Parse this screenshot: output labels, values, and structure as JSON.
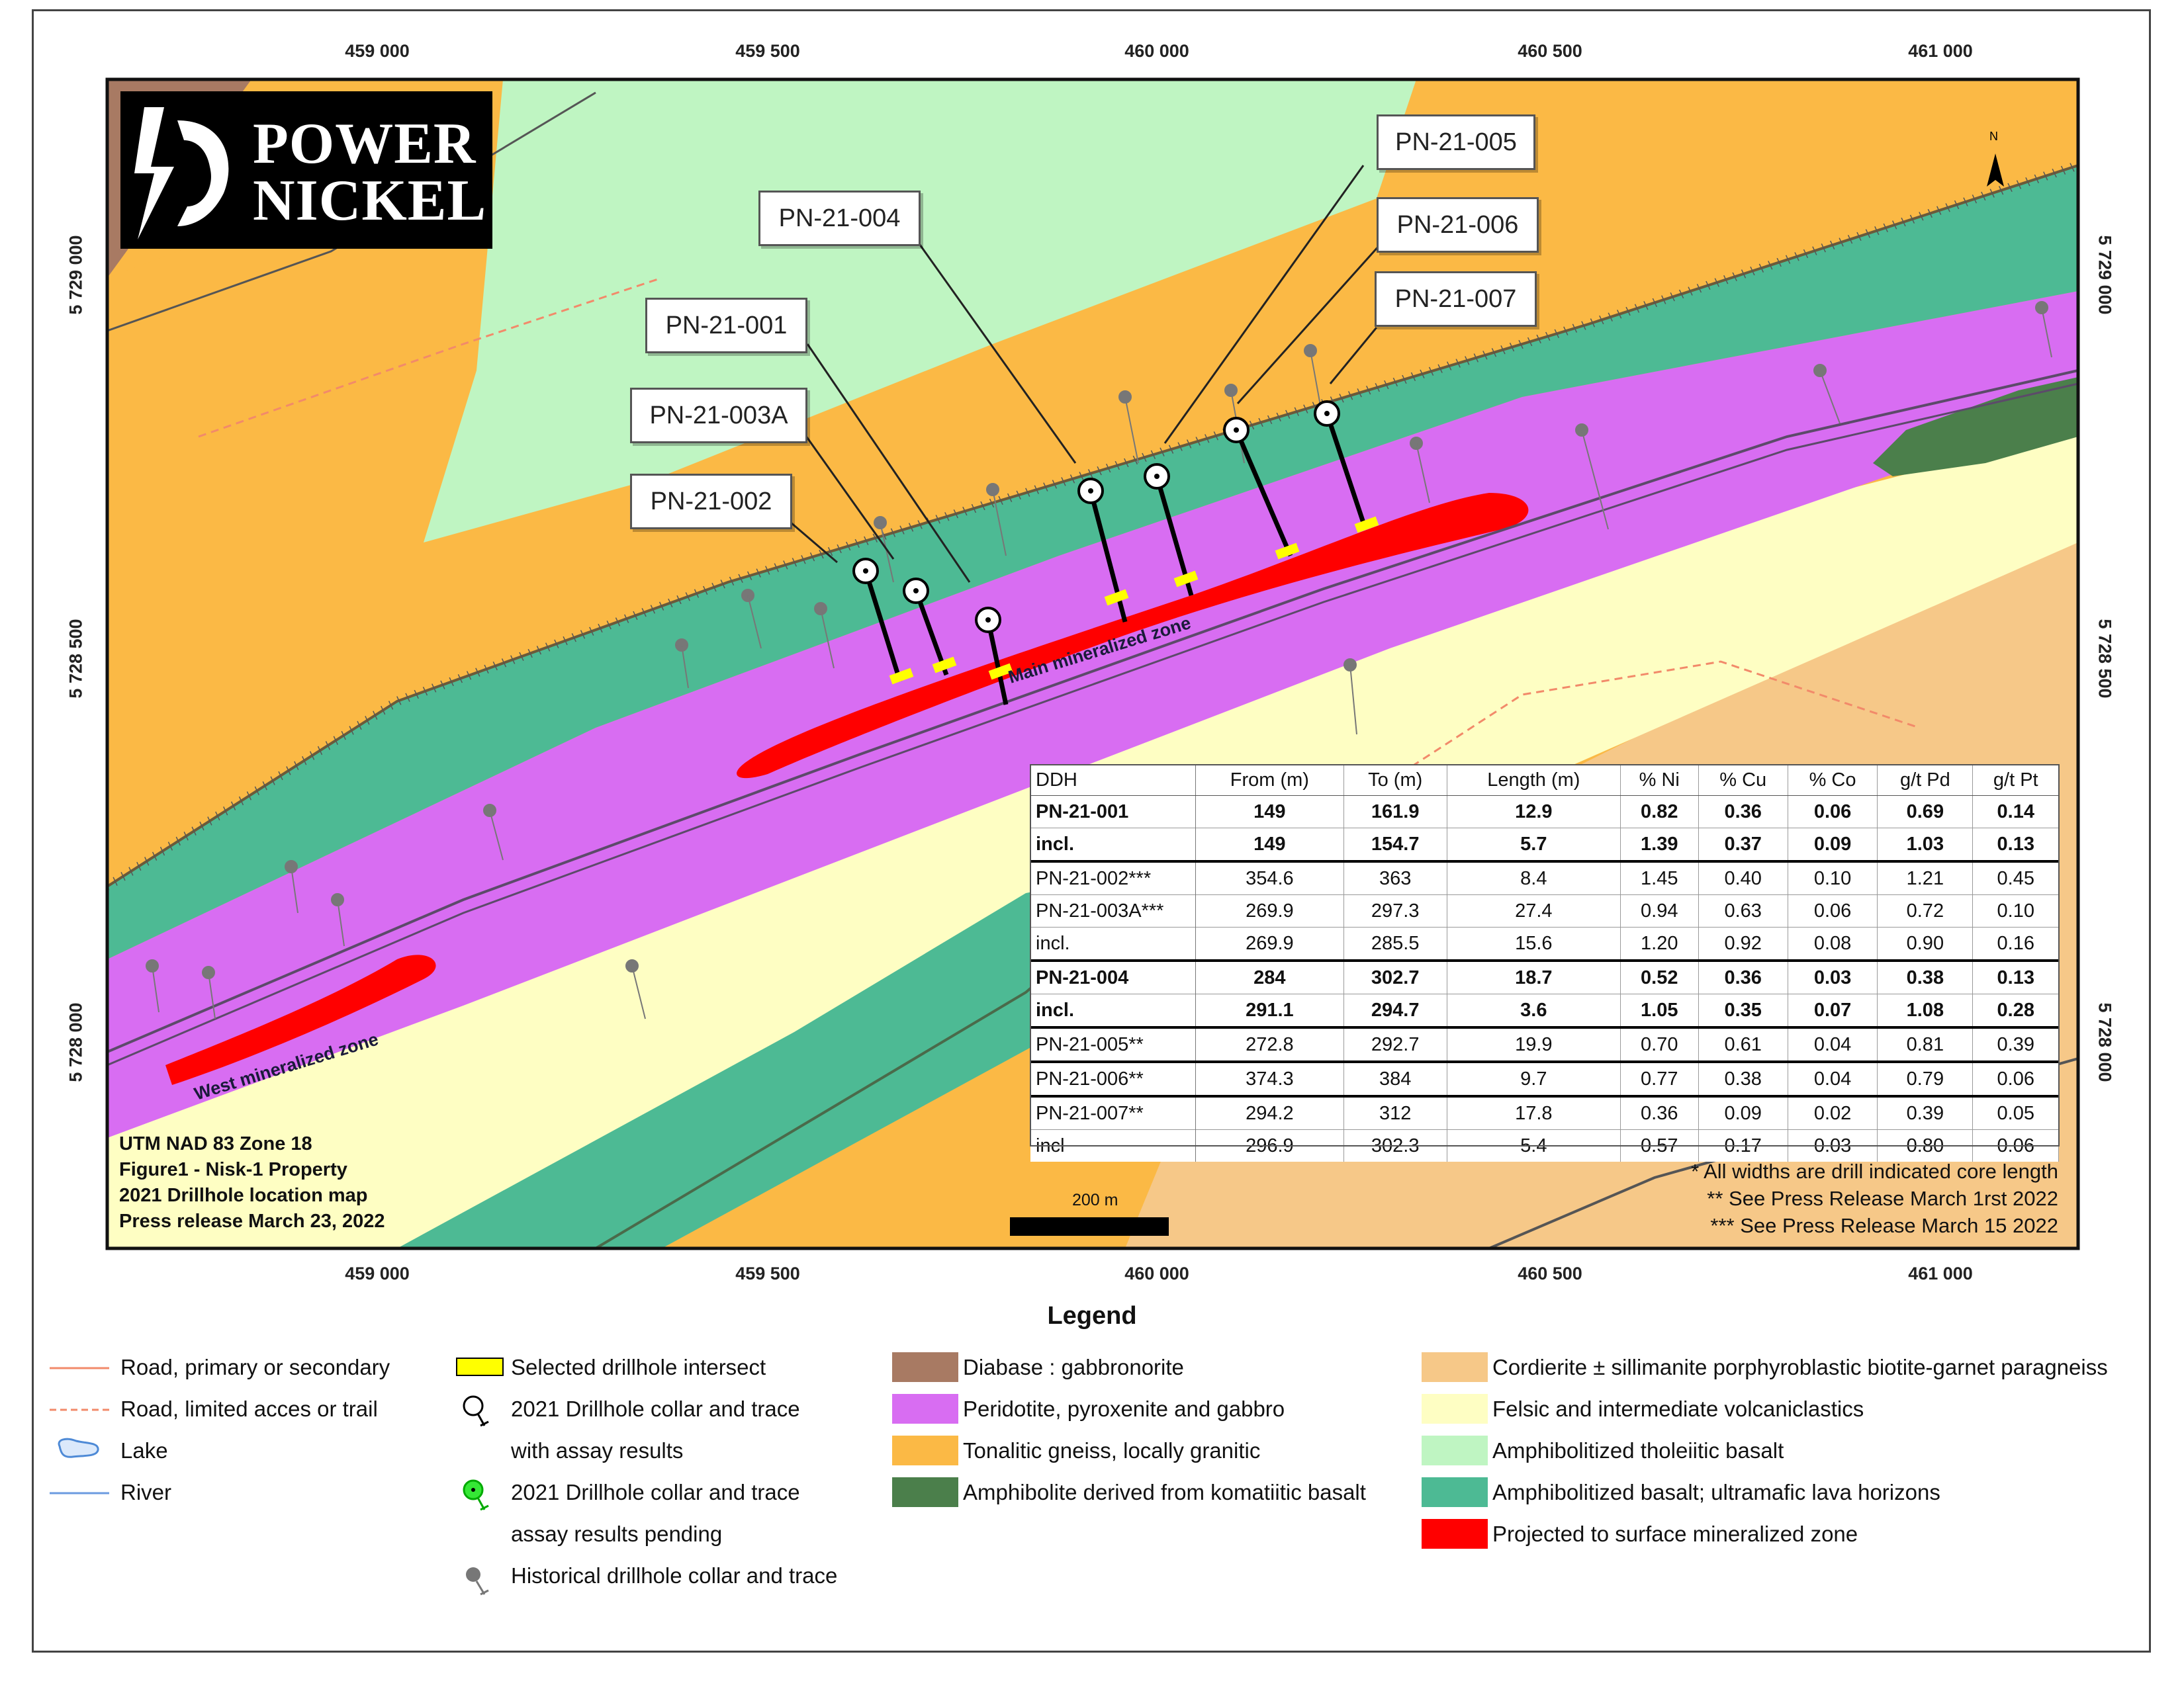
{
  "axes": {
    "easting_labels": [
      "459 000",
      "459 500",
      "460 000",
      "460 500",
      "461 000"
    ],
    "northing_labels": [
      "5 729 000",
      "5 728 500",
      "5 728 000"
    ]
  },
  "logo": {
    "line1": "POWER",
    "line2": "NICKEL"
  },
  "north_arrow_label": "N",
  "callouts": {
    "pn005": "PN-21-005",
    "pn004": "PN-21-004",
    "pn006": "PN-21-006",
    "pn007": "PN-21-007",
    "pn001": "PN-21-001",
    "pn003a": "PN-21-003A",
    "pn002": "PN-21-002"
  },
  "zone_labels": {
    "main": "Main mineralized zone",
    "west": "West mineralized zone"
  },
  "results_table": {
    "headers": [
      "DDH",
      "From (m)",
      "To (m)",
      "Length (m)",
      "% Ni",
      "% Cu",
      "% Co",
      "g/t Pd",
      "g/t Pt"
    ],
    "rows": [
      [
        "PN-21-001",
        "149",
        "161.9",
        "12.9",
        "0.82",
        "0.36",
        "0.06",
        "0.69",
        "0.14"
      ],
      [
        "incl.",
        "149",
        "154.7",
        "5.7",
        "1.39",
        "0.37",
        "0.09",
        "1.03",
        "0.13"
      ],
      [
        "PN-21-002***",
        "354.6",
        "363",
        "8.4",
        "1.45",
        "0.40",
        "0.10",
        "1.21",
        "0.45"
      ],
      [
        "PN-21-003A***",
        "269.9",
        "297.3",
        "27.4",
        "0.94",
        "0.63",
        "0.06",
        "0.72",
        "0.10"
      ],
      [
        "incl.",
        "269.9",
        "285.5",
        "15.6",
        "1.20",
        "0.92",
        "0.08",
        "0.90",
        "0.16"
      ],
      [
        "PN-21-004",
        "284",
        "302.7",
        "18.7",
        "0.52",
        "0.36",
        "0.03",
        "0.38",
        "0.13"
      ],
      [
        "incl.",
        "291.1",
        "294.7",
        "3.6",
        "1.05",
        "0.35",
        "0.07",
        "1.08",
        "0.28"
      ],
      [
        "PN-21-005**",
        "272.8",
        "292.7",
        "19.9",
        "0.70",
        "0.61",
        "0.04",
        "0.81",
        "0.39"
      ],
      [
        "PN-21-006**",
        "374.3",
        "384",
        "9.7",
        "0.77",
        "0.38",
        "0.04",
        "0.79",
        "0.06"
      ],
      [
        "PN-21-007**",
        "294.2",
        "312",
        "17.8",
        "0.36",
        "0.09",
        "0.02",
        "0.39",
        "0.05"
      ],
      [
        "incl",
        "296.9",
        "302.3",
        "5.4",
        "0.57",
        "0.17",
        "0.03",
        "0.80",
        "0.06"
      ]
    ]
  },
  "map_info": {
    "line1": "UTM NAD 83 Zone 18",
    "line2": "Figure1 - Nisk-1 Property",
    "line3": "2021 Drillhole location map",
    "line4": "Press release March 23, 2022"
  },
  "footnotes": {
    "f1": "* All widths are drill indicated core length",
    "f2": "**  See Press Release March 1rst 2022",
    "f3": "*** See Press Release March 15 2022"
  },
  "scale_bar_label": "200 m",
  "legend": {
    "title": "Legend",
    "road_primary": "Road, primary or secondary",
    "road_limited": "Road, limited acces or trail",
    "lake": "Lake",
    "river": "River",
    "selected_intersect": "Selected drillhole intersect",
    "collar_results_1": "2021 Drillhole collar and trace",
    "collar_results_2": "with assay results",
    "collar_pending_1": "2021 Drillhole collar and trace",
    "collar_pending_2": "assay results pending",
    "historical": "Historical drillhole collar and trace",
    "diabase": "Diabase : gabbronorite",
    "peridotite": "Peridotite, pyroxenite and gabbro",
    "tonalitic": "Tonalitic gneiss, locally granitic",
    "amphibolite": "Amphibolite derived from komatiitic basalt",
    "cordierite": "Cordierite ± sillimanite porphyroblastic biotite-garnet paragneiss",
    "felsic": "Felsic and intermediate volcaniclastics",
    "tholeiitic": "Amphibolitized tholeiitic basalt",
    "amph_basalt": "Amphibolitized basalt; ultramafic lava horizons",
    "projected": "Projected to surface mineralized zone"
  },
  "colors": {
    "diabase": "#a87a63",
    "peridotite": "#d86df2",
    "tonalitic": "#fbb945",
    "amphibolite": "#4b7f4b",
    "cordierite": "#f6c888",
    "felsic": "#fefec3",
    "tholeiitic": "#bff5c2",
    "amph_basalt": "#4dba94",
    "projected": "#ff0000",
    "intersect": "#ffff00"
  }
}
